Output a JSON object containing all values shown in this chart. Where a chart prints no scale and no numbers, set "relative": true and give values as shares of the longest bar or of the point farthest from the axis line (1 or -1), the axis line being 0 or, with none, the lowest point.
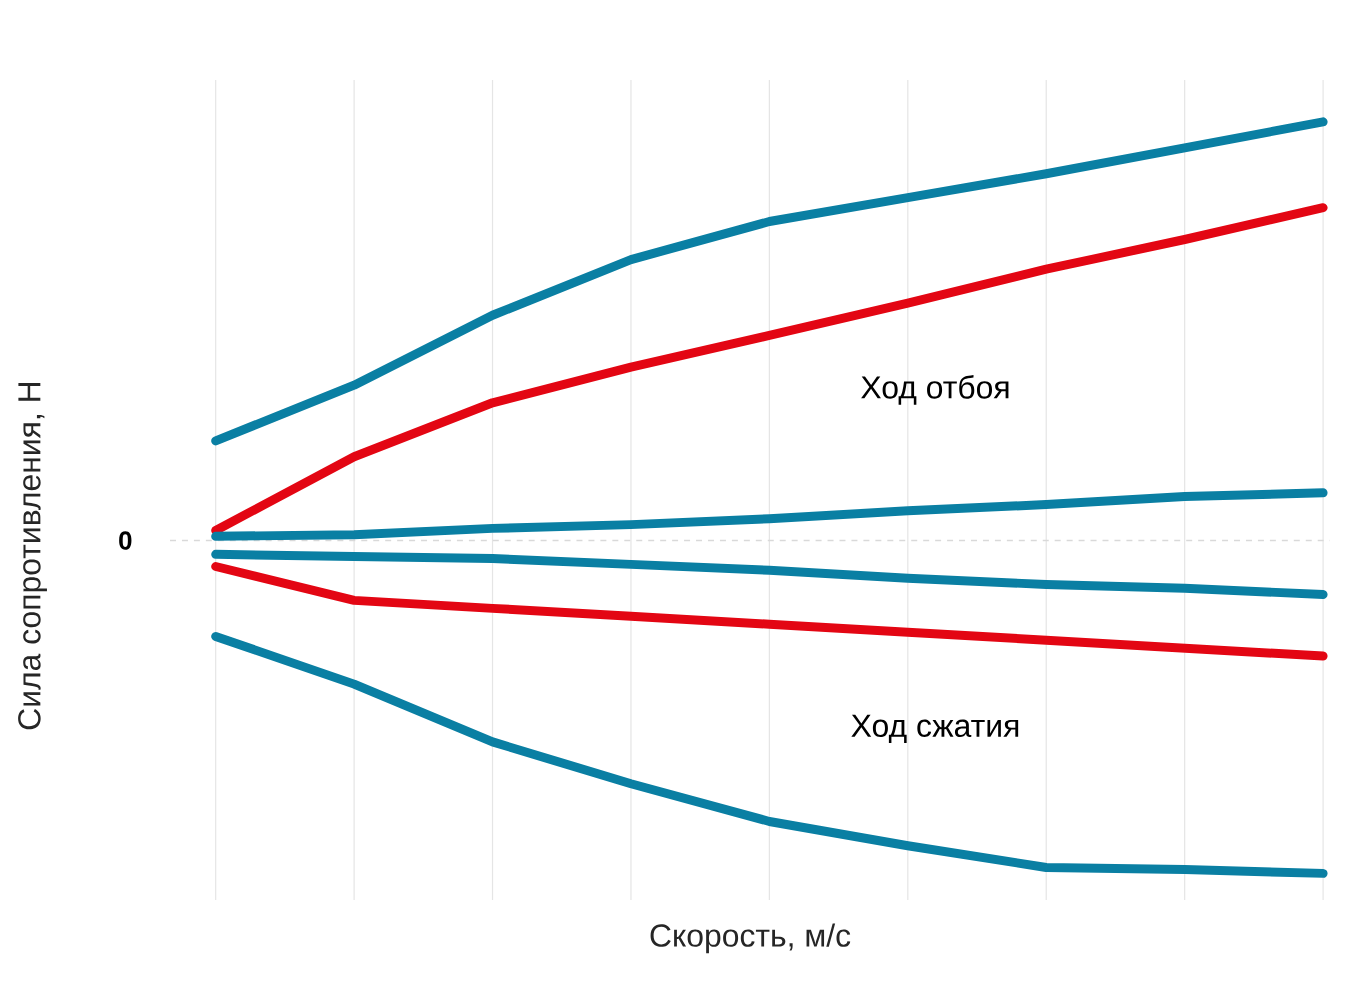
{
  "chart_data": {
    "type": "line",
    "relative": true,
    "xlabel": "Скорость, м/с",
    "ylabel": "Сила сопротивления, Н",
    "categories": [
      null,
      null,
      null,
      null,
      null,
      null,
      null,
      null,
      null
    ],
    "series": [
      {
        "color": "#0a7fa3",
        "values": [
          0.238,
          0.371,
          0.538,
          0.671,
          0.762,
          0.819,
          0.876,
          0.938,
          1
        ]
      },
      {
        "color": "#e30613",
        "values": [
          0.024,
          0.2,
          0.329,
          0.414,
          0.49,
          0.567,
          0.648,
          0.719,
          0.795
        ]
      },
      {
        "color": "#0a7fa3",
        "values": [
          0.01,
          0.014,
          0.029,
          0.038,
          0.052,
          0.071,
          0.086,
          0.105,
          0.114
        ]
      },
      {
        "color": "#0a7fa3",
        "values": [
          -0.033,
          -0.038,
          -0.043,
          -0.057,
          -0.071,
          -0.09,
          -0.105,
          -0.114,
          -0.129
        ]
      },
      {
        "color": "#e30613",
        "values": [
          -0.062,
          -0.143,
          -0.162,
          -0.181,
          -0.2,
          -0.219,
          -0.238,
          -0.257,
          -0.276
        ]
      },
      {
        "color": "#0a7fa3",
        "values": [
          -0.229,
          -0.343,
          -0.481,
          -0.581,
          -0.671,
          -0.729,
          -0.781,
          -0.786,
          -0.795
        ]
      }
    ],
    "ref_lines": [
      {
        "axis": "y",
        "value": 0,
        "label": "0",
        "color": "#d9d9d9",
        "line_style": "dashed"
      }
    ],
    "annotations": [
      "Ход отбоя",
      "Ход сжатия"
    ],
    "grid": "x",
    "marker": "none",
    "line_style": "solid"
  }
}
